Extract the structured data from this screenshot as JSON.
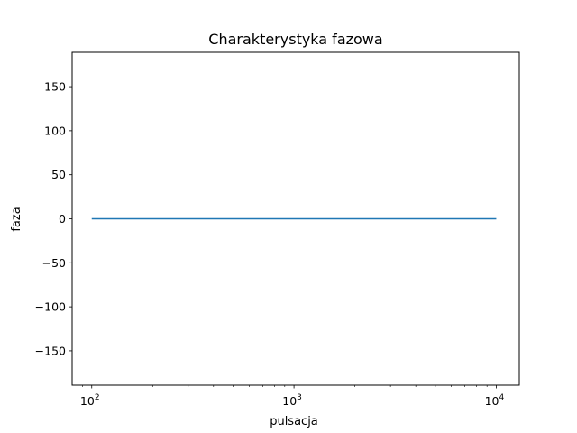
{
  "chart_data": {
    "type": "line",
    "title": "Charakterystyka fazowa",
    "xlabel": "pulsacja",
    "ylabel": "faza",
    "xscale": "log",
    "xlim": [
      80,
      13000
    ],
    "ylim": [
      -189,
      189
    ],
    "x_ticks": [
      {
        "value": 100,
        "base": "10",
        "exp": "2"
      },
      {
        "value": 1000,
        "base": "10",
        "exp": "3"
      },
      {
        "value": 10000,
        "base": "10",
        "exp": "4"
      }
    ],
    "y_ticks": [
      {
        "value": 150,
        "label": "150"
      },
      {
        "value": 100,
        "label": "100"
      },
      {
        "value": 50,
        "label": "50"
      },
      {
        "value": 0,
        "label": "0"
      },
      {
        "value": -50,
        "label": "−50"
      },
      {
        "value": -100,
        "label": "−100"
      },
      {
        "value": -150,
        "label": "−150"
      }
    ],
    "grid": false,
    "series": [
      {
        "color": "#1f77b4",
        "x": [
          100,
          10000
        ],
        "y": [
          0,
          0
        ]
      }
    ]
  }
}
